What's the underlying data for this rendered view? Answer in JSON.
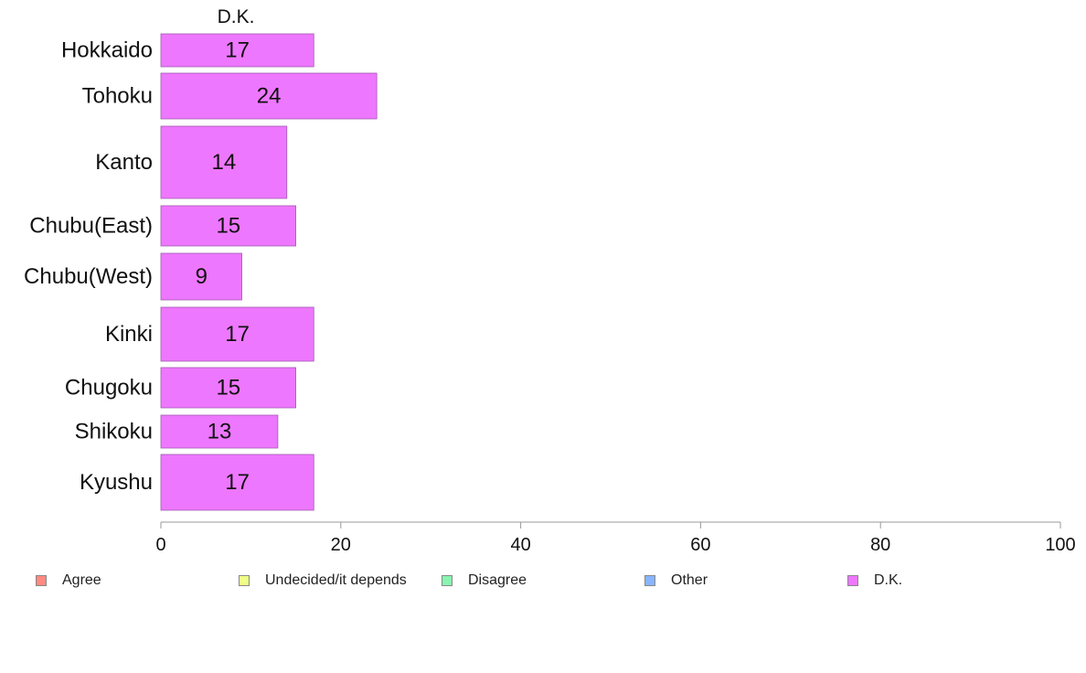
{
  "chart_data": {
    "type": "bar",
    "orientation": "horizontal",
    "panel_title": "D.K.",
    "categories": [
      "Hokkaido",
      "Tohoku",
      "Kanto",
      "Chubu(East)",
      "Chubu(West)",
      "Kinki",
      "Chugoku",
      "Shikoku",
      "Kyushu"
    ],
    "series": [
      {
        "name": "D.K.",
        "values": [
          17,
          24,
          14,
          15,
          9,
          17,
          15,
          13,
          17
        ],
        "color": "#ee77ff"
      }
    ],
    "data_labels": [
      "17",
      "24",
      "14",
      "15",
      "9",
      "17",
      "15",
      "13",
      "17"
    ],
    "xlim": [
      0,
      100
    ],
    "x_ticks": [
      0,
      20,
      40,
      60,
      80,
      100
    ],
    "x_tick_labels": [
      "0",
      "20",
      "40",
      "60",
      "80",
      "100"
    ],
    "grid": false,
    "legend_position": "bottom",
    "legend": [
      {
        "label": "Agree",
        "color": "#ff8a80"
      },
      {
        "label": "Undecided/it depends",
        "color": "#eeff88"
      },
      {
        "label": "Disagree",
        "color": "#88f5b0"
      },
      {
        "label": "Other",
        "color": "#88b5ff"
      },
      {
        "label": "D.K.",
        "color": "#ee77ff"
      }
    ]
  }
}
